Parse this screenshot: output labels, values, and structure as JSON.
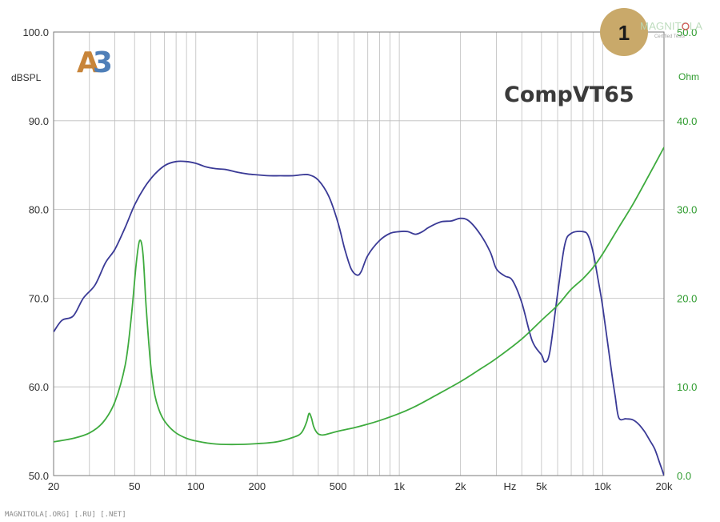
{
  "chart_data": {
    "type": "line",
    "title": "CompVT65",
    "xscale": "log",
    "xlim": [
      20,
      20000
    ],
    "x_ticks": [
      {
        "v": 20,
        "label": "20"
      },
      {
        "v": 50,
        "label": "50"
      },
      {
        "v": 100,
        "label": "100"
      },
      {
        "v": 200,
        "label": "200"
      },
      {
        "v": 500,
        "label": "500"
      },
      {
        "v": 1000,
        "label": "1k"
      },
      {
        "v": 2000,
        "label": "2k"
      },
      {
        "v": 3500,
        "label": "Hz"
      },
      {
        "v": 5000,
        "label": "5k"
      },
      {
        "v": 10000,
        "label": "10k"
      },
      {
        "v": 20000,
        "label": "20k"
      }
    ],
    "y_left": {
      "label": "dBSPL",
      "lim": [
        50,
        100
      ],
      "ticks": [
        "50.0",
        "60.0",
        "70.0",
        "80.0",
        "90.0",
        "100.0"
      ]
    },
    "y_right": {
      "label": "Ohm",
      "lim": [
        0,
        50
      ],
      "ticks": [
        "0.0",
        "10.0",
        "20.0",
        "30.0",
        "40.0",
        "50.0"
      ]
    },
    "grid": true,
    "series": [
      {
        "axis": "left",
        "color": "#3a3a96",
        "x": [
          20,
          22,
          25,
          28,
          32,
          36,
          40,
          45,
          50,
          56,
          63,
          71,
          80,
          90,
          100,
          112,
          125,
          140,
          160,
          180,
          200,
          230,
          260,
          300,
          330,
          360,
          400,
          450,
          500,
          540,
          580,
          620,
          650,
          700,
          800,
          900,
          1000,
          1100,
          1200,
          1300,
          1400,
          1600,
          1800,
          2000,
          2200,
          2500,
          2800,
          3000,
          3300,
          3600,
          4000,
          4500,
          5000,
          5200,
          5500,
          6000,
          6500,
          7000,
          8000,
          8500,
          9000,
          9500,
          10000,
          11000,
          11500,
          12000,
          13000,
          14000,
          15000,
          16000,
          17000,
          18000,
          19000,
          20000
        ],
        "y": [
          66.2,
          67.5,
          68.0,
          70.0,
          71.5,
          74.0,
          75.5,
          78.0,
          80.5,
          82.5,
          84.0,
          85.0,
          85.4,
          85.4,
          85.2,
          84.8,
          84.6,
          84.5,
          84.2,
          84.0,
          83.9,
          83.8,
          83.8,
          83.8,
          83.9,
          83.9,
          83.3,
          81.5,
          78.5,
          75.5,
          73.3,
          72.6,
          73.0,
          74.8,
          76.5,
          77.3,
          77.5,
          77.5,
          77.2,
          77.5,
          78.0,
          78.6,
          78.7,
          79.0,
          78.7,
          77.2,
          75.2,
          73.3,
          72.5,
          72.0,
          69.5,
          65.2,
          63.6,
          62.8,
          64.0,
          70.5,
          76.0,
          77.3,
          77.5,
          77.0,
          75.0,
          72.0,
          69.0,
          62.0,
          59.0,
          56.5,
          56.4,
          56.3,
          55.8,
          55.0,
          54.0,
          53.0,
          51.5,
          50.0
        ]
      },
      {
        "axis": "right",
        "color": "#3eab3e",
        "x": [
          20,
          25,
          30,
          35,
          40,
          45,
          48,
          51,
          53,
          55,
          57,
          60,
          63,
          67,
          72,
          80,
          90,
          100,
          120,
          150,
          200,
          250,
          300,
          330,
          350,
          360,
          370,
          380,
          395,
          410,
          430,
          500,
          600,
          700,
          800,
          1000,
          1200,
          1500,
          2000,
          2500,
          3000,
          4000,
          5000,
          6000,
          7000,
          8000,
          9000,
          10000,
          12000,
          14000,
          17000,
          20000
        ],
        "y": [
          3.8,
          4.2,
          4.8,
          6.0,
          8.3,
          12.5,
          17.5,
          24.0,
          26.5,
          25.0,
          19.0,
          12.5,
          9.0,
          7.0,
          5.8,
          4.8,
          4.2,
          3.9,
          3.6,
          3.5,
          3.6,
          3.8,
          4.3,
          4.8,
          6.0,
          7.0,
          6.5,
          5.5,
          4.8,
          4.6,
          4.6,
          5.0,
          5.4,
          5.8,
          6.2,
          7.0,
          7.8,
          9.0,
          10.6,
          12.0,
          13.2,
          15.4,
          17.5,
          19.2,
          21.0,
          22.2,
          23.5,
          25.0,
          28.0,
          30.5,
          34.0,
          37.0
        ]
      }
    ]
  },
  "overlays": {
    "badge_number": "1",
    "logo_text": "A3",
    "watermark": "MAGNITOLA",
    "watermark_sub": "Certified Tests",
    "footer": "MAGNITOLA[.ORG] [.RU] [.NET]"
  },
  "colors": {
    "badge": "#c9a96a",
    "logo_orange": "#c8853a",
    "logo_blue": "#4f7fb8"
  }
}
